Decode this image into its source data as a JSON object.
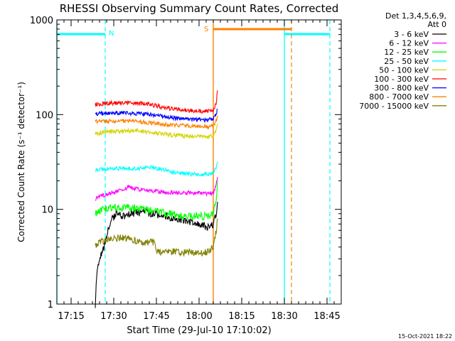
{
  "chart_data": {
    "type": "line",
    "title": "RHESSI Observing Summary Count Rates, Corrected",
    "xlabel": "Start Time (29-Jul-10 17:10:02)",
    "ylabel": "Corrected Count Rate (s⁻¹ detector⁻¹)",
    "y_scale": "log",
    "ylim": [
      1,
      1000
    ],
    "xlim_minutes_after_17_10": [
      0,
      100
    ],
    "x_ticks": [
      {
        "t": 5,
        "label": "17:15"
      },
      {
        "t": 20,
        "label": "17:30"
      },
      {
        "t": 35,
        "label": "17:45"
      },
      {
        "t": 50,
        "label": "18:00"
      },
      {
        "t": 65,
        "label": "18:15"
      },
      {
        "t": 80,
        "label": "18:30"
      },
      {
        "t": 95,
        "label": "18:45"
      }
    ],
    "y_ticks": [
      {
        "v": 1,
        "label": "1"
      },
      {
        "v": 10,
        "label": "10"
      },
      {
        "v": 100,
        "label": "100"
      },
      {
        "v": 1000,
        "label": "1000"
      }
    ],
    "legend_header": [
      "Det 1,3,4,5,6,9,",
      "Att 0"
    ],
    "legend_position": "top-right",
    "series": [
      {
        "name": "3 - 6 keV",
        "color": "#000000",
        "points": [
          [
            13.5,
            1
          ],
          [
            14,
            2
          ],
          [
            15,
            3
          ],
          [
            16.5,
            4
          ],
          [
            18,
            6
          ],
          [
            19.5,
            8
          ],
          [
            21,
            9
          ],
          [
            23,
            8.5
          ],
          [
            26,
            9
          ],
          [
            30,
            9.5
          ],
          [
            34,
            9
          ],
          [
            38,
            8.5
          ],
          [
            42,
            8
          ],
          [
            46,
            7.5
          ],
          [
            50,
            7
          ],
          [
            53,
            6.5
          ],
          [
            55,
            7
          ],
          [
            56,
            9
          ],
          [
            56.5,
            12
          ]
        ]
      },
      {
        "name": "6 - 12 keV",
        "color": "#ff00ff",
        "points": [
          [
            13.5,
            13
          ],
          [
            16,
            14
          ],
          [
            20,
            15
          ],
          [
            25,
            17
          ],
          [
            30,
            16
          ],
          [
            35,
            15.5
          ],
          [
            40,
            15
          ],
          [
            45,
            15
          ],
          [
            50,
            15
          ],
          [
            53,
            14.5
          ],
          [
            55,
            15
          ],
          [
            56,
            18
          ],
          [
            56.5,
            22
          ]
        ]
      },
      {
        "name": "12 - 25 keV",
        "color": "#00ff00",
        "points": [
          [
            13.5,
            9
          ],
          [
            16,
            10
          ],
          [
            20,
            10.5
          ],
          [
            25,
            10.5
          ],
          [
            30,
            10
          ],
          [
            35,
            9.5
          ],
          [
            40,
            9
          ],
          [
            45,
            8.5
          ],
          [
            50,
            8.5
          ],
          [
            53,
            8.5
          ],
          [
            55,
            9
          ],
          [
            56,
            13
          ],
          [
            56.5,
            20
          ]
        ]
      },
      {
        "name": "25 - 50 keV",
        "color": "#00ffff",
        "points": [
          [
            13.5,
            26
          ],
          [
            18,
            27
          ],
          [
            23,
            27
          ],
          [
            28,
            27
          ],
          [
            33,
            28
          ],
          [
            38,
            26
          ],
          [
            43,
            24
          ],
          [
            48,
            23.5
          ],
          [
            53,
            23.5
          ],
          [
            55,
            24
          ],
          [
            56,
            27
          ],
          [
            56.5,
            32
          ]
        ]
      },
      {
        "name": "50 - 100 keV",
        "color": "#d4d400",
        "points": [
          [
            13.5,
            63
          ],
          [
            18,
            66
          ],
          [
            23,
            67
          ],
          [
            28,
            68
          ],
          [
            33,
            65
          ],
          [
            38,
            62
          ],
          [
            43,
            60
          ],
          [
            48,
            59
          ],
          [
            53,
            58
          ],
          [
            55,
            60
          ],
          [
            56,
            68
          ],
          [
            56.5,
            80
          ]
        ]
      },
      {
        "name": "100 - 300 keV",
        "color": "#ff0000",
        "points": [
          [
            13.5,
            128
          ],
          [
            18,
            132
          ],
          [
            23,
            133
          ],
          [
            28,
            132
          ],
          [
            33,
            128
          ],
          [
            38,
            118
          ],
          [
            43,
            113
          ],
          [
            48,
            110
          ],
          [
            53,
            109
          ],
          [
            55,
            112
          ],
          [
            56,
            130
          ],
          [
            56.5,
            180
          ]
        ]
      },
      {
        "name": "300 - 800 keV",
        "color": "#0000ff",
        "points": [
          [
            13.5,
            102
          ],
          [
            18,
            104
          ],
          [
            23,
            104
          ],
          [
            28,
            103
          ],
          [
            33,
            100
          ],
          [
            38,
            95
          ],
          [
            43,
            91
          ],
          [
            48,
            89
          ],
          [
            53,
            88
          ],
          [
            55,
            90
          ],
          [
            56,
            100
          ],
          [
            56.5,
            115
          ]
        ]
      },
      {
        "name": "800 - 7000 keV",
        "color": "#ff8000",
        "points": [
          [
            13.5,
            84
          ],
          [
            18,
            86
          ],
          [
            23,
            86
          ],
          [
            28,
            85
          ],
          [
            33,
            82
          ],
          [
            38,
            79
          ],
          [
            43,
            77
          ],
          [
            48,
            76
          ],
          [
            53,
            75
          ],
          [
            55,
            77
          ],
          [
            56,
            85
          ],
          [
            56.5,
            98
          ]
        ]
      },
      {
        "name": "7000 - 15000 keV",
        "color": "#808000",
        "points": [
          [
            13.5,
            4
          ],
          [
            15,
            4.5
          ],
          [
            20,
            5
          ],
          [
            25,
            5
          ],
          [
            30,
            4.5
          ],
          [
            34,
            4.5
          ],
          [
            35,
            3.6
          ],
          [
            40,
            3.6
          ],
          [
            45,
            3.5
          ],
          [
            50,
            3.5
          ],
          [
            53,
            3.6
          ],
          [
            55,
            4
          ],
          [
            56,
            6
          ],
          [
            56.5,
            8
          ]
        ]
      }
    ],
    "annotations": [
      {
        "label": "N",
        "color": "#00ffff"
      },
      {
        "label": "S",
        "color": "#ff8000"
      }
    ],
    "footer_date": "15-Oct-2021 18:22"
  }
}
